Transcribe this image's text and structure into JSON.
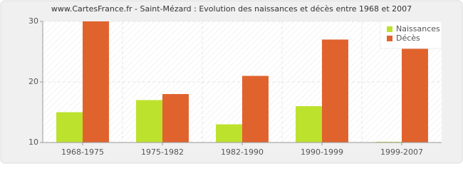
{
  "chart_data": {
    "type": "bar",
    "title": "www.CartesFrance.fr - Saint-Mézard : Evolution des naissances et décès entre 1968 et 2007",
    "categories": [
      "1968-1975",
      "1975-1982",
      "1982-1990",
      "1990-1999",
      "1999-2007"
    ],
    "series": [
      {
        "name": "Naissances",
        "color": "#bde22e",
        "values": [
          15,
          17,
          13,
          16,
          10
        ]
      },
      {
        "name": "Décès",
        "color": "#e0632e",
        "values": [
          30,
          18,
          21,
          27,
          26
        ]
      }
    ],
    "ylim": [
      10,
      30
    ],
    "yticks": [
      10,
      20,
      30
    ],
    "grid": true,
    "legend": "top-right"
  }
}
